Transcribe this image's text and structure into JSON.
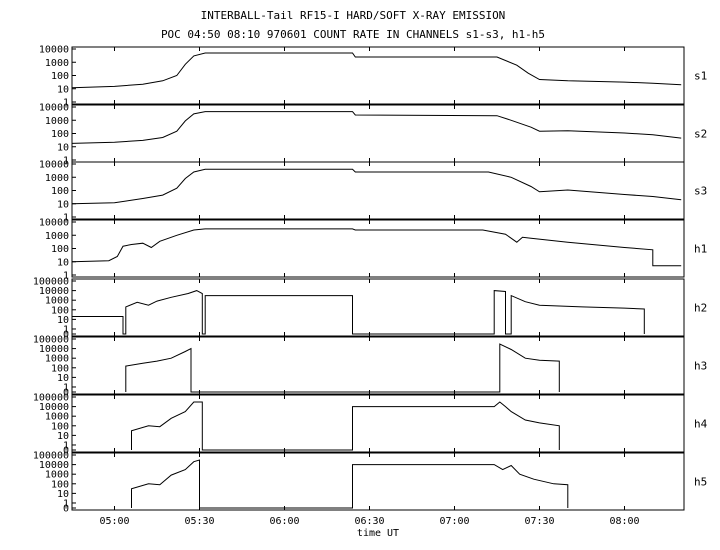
{
  "figure": {
    "title_line1": "INTERBALL-Tail RF15-I HARD/SOFT X-RAY EMISSION",
    "title_line2": "POC 04:50 08:10 970601  COUNT RATE IN CHANNELS s1-s3, h1-h5"
  },
  "chart_data": {
    "type": "line",
    "xlabel": "time UT",
    "x_ticks": [
      "05:00",
      "05:30",
      "06:00",
      "06:30",
      "07:00",
      "07:30",
      "08:00"
    ],
    "xlim": [
      "04:45",
      "08:21"
    ],
    "y_scale": "log",
    "series": [
      {
        "name": "s1",
        "y_ticks": [
          "10000",
          "1000",
          "100",
          "10",
          "1"
        ],
        "ylim": [
          1,
          10000
        ],
        "points": [
          [
            "04:45",
            12
          ],
          [
            "05:00",
            15
          ],
          [
            "05:10",
            22
          ],
          [
            "05:17",
            40
          ],
          [
            "05:22",
            100
          ],
          [
            "05:25",
            700
          ],
          [
            "05:28",
            3000
          ],
          [
            "05:32",
            5000
          ],
          [
            "06:24",
            5000
          ],
          [
            "06:25",
            2500
          ],
          [
            "07:15",
            2500
          ],
          [
            "07:22",
            600
          ],
          [
            "07:26",
            150
          ],
          [
            "07:30",
            50
          ],
          [
            "07:40",
            40
          ],
          [
            "08:00",
            32
          ],
          [
            "08:10",
            26
          ],
          [
            "08:20",
            20
          ]
        ]
      },
      {
        "name": "s2",
        "y_ticks": [
          "10000",
          "1000",
          "100",
          "10",
          "1"
        ],
        "ylim": [
          1,
          10000
        ],
        "points": [
          [
            "04:45",
            18
          ],
          [
            "05:00",
            22
          ],
          [
            "05:10",
            30
          ],
          [
            "05:17",
            50
          ],
          [
            "05:22",
            150
          ],
          [
            "05:25",
            900
          ],
          [
            "05:28",
            3000
          ],
          [
            "05:32",
            4500
          ],
          [
            "06:24",
            4500
          ],
          [
            "06:25",
            2500
          ],
          [
            "07:15",
            2200
          ],
          [
            "07:20",
            1000
          ],
          [
            "07:27",
            300
          ],
          [
            "07:30",
            150
          ],
          [
            "07:40",
            160
          ],
          [
            "08:00",
            110
          ],
          [
            "08:10",
            80
          ],
          [
            "08:20",
            45
          ]
        ]
      },
      {
        "name": "s3",
        "y_ticks": [
          "10000",
          "1000",
          "100",
          "10",
          "1"
        ],
        "ylim": [
          1,
          10000
        ],
        "points": [
          [
            "04:45",
            10
          ],
          [
            "05:00",
            12
          ],
          [
            "05:10",
            25
          ],
          [
            "05:17",
            45
          ],
          [
            "05:22",
            150
          ],
          [
            "05:25",
            800
          ],
          [
            "05:28",
            2500
          ],
          [
            "05:32",
            4000
          ],
          [
            "06:24",
            4000
          ],
          [
            "06:25",
            2500
          ],
          [
            "07:12",
            2500
          ],
          [
            "07:20",
            1000
          ],
          [
            "07:27",
            200
          ],
          [
            "07:30",
            80
          ],
          [
            "07:40",
            110
          ],
          [
            "08:00",
            50
          ],
          [
            "08:10",
            35
          ],
          [
            "08:20",
            20
          ]
        ]
      },
      {
        "name": "h1",
        "y_ticks": [
          "10000",
          "1000",
          "100",
          "10",
          "1"
        ],
        "ylim": [
          1,
          10000
        ],
        "points": [
          [
            "04:45",
            10
          ],
          [
            "04:58",
            12
          ],
          [
            "05:01",
            25
          ],
          [
            "05:03",
            150
          ],
          [
            "05:06",
            200
          ],
          [
            "05:10",
            250
          ],
          [
            "05:13",
            120
          ],
          [
            "05:16",
            350
          ],
          [
            "05:22",
            1000
          ],
          [
            "05:28",
            2500
          ],
          [
            "05:32",
            3000
          ],
          [
            "06:24",
            3000
          ],
          [
            "06:25",
            2500
          ],
          [
            "07:10",
            2500
          ],
          [
            "07:18",
            1200
          ],
          [
            "07:22",
            300
          ],
          [
            "07:24",
            700
          ],
          [
            "07:27",
            600
          ],
          [
            "07:40",
            300
          ],
          [
            "08:00",
            120
          ],
          [
            "08:10",
            80
          ],
          [
            "08:10",
            5
          ],
          [
            "08:20",
            5
          ]
        ]
      },
      {
        "name": "h2",
        "y_ticks": [
          "100000",
          "10000",
          "1000",
          "100",
          "10",
          "1",
          "0"
        ],
        "ylim": [
          0.3,
          100000
        ],
        "points": [
          [
            "04:45",
            20
          ],
          [
            "05:03",
            20
          ],
          [
            "05:03",
            0.3
          ],
          [
            "05:04",
            0.3
          ],
          [
            "05:04",
            200
          ],
          [
            "05:08",
            600
          ],
          [
            "05:12",
            300
          ],
          [
            "05:15",
            800
          ],
          [
            "05:20",
            2000
          ],
          [
            "05:26",
            5000
          ],
          [
            "05:29",
            10000
          ],
          [
            "05:31",
            5000
          ],
          [
            "05:31",
            0.3
          ],
          [
            "05:32",
            0.3
          ],
          [
            "05:32",
            3000
          ],
          [
            "06:24",
            3000
          ],
          [
            "06:24",
            0.3
          ],
          [
            "07:14",
            0.3
          ],
          [
            "07:14",
            10000
          ],
          [
            "07:18",
            8000
          ],
          [
            "07:18",
            0.3
          ],
          [
            "07:20",
            0.3
          ],
          [
            "07:20",
            3000
          ],
          [
            "07:25",
            700
          ],
          [
            "07:30",
            300
          ],
          [
            "07:45",
            200
          ],
          [
            "08:00",
            150
          ],
          [
            "08:07",
            120
          ],
          [
            "08:07",
            0.3
          ]
        ]
      },
      {
        "name": "h3",
        "y_ticks": [
          "100000",
          "10000",
          "1000",
          "100",
          "10",
          "1",
          "0"
        ],
        "ylim": [
          0.3,
          100000
        ],
        "points": [
          [
            "05:04",
            0.3
          ],
          [
            "05:04",
            150
          ],
          [
            "05:10",
            300
          ],
          [
            "05:15",
            500
          ],
          [
            "05:20",
            1000
          ],
          [
            "05:25",
            5000
          ],
          [
            "05:27",
            10000
          ],
          [
            "05:27",
            0.3
          ],
          [
            "07:16",
            0.3
          ],
          [
            "07:16",
            30000
          ],
          [
            "07:20",
            8000
          ],
          [
            "07:25",
            1000
          ],
          [
            "07:30",
            600
          ],
          [
            "07:37",
            500
          ],
          [
            "07:37",
            0.3
          ]
        ]
      },
      {
        "name": "h4",
        "y_ticks": [
          "100000",
          "10000",
          "1000",
          "100",
          "10",
          "1",
          "0"
        ],
        "ylim": [
          0.3,
          100000
        ],
        "points": [
          [
            "05:06",
            0.3
          ],
          [
            "05:06",
            30
          ],
          [
            "05:12",
            100
          ],
          [
            "05:16",
            80
          ],
          [
            "05:20",
            600
          ],
          [
            "05:25",
            3000
          ],
          [
            "05:28",
            30000
          ],
          [
            "05:31",
            30000
          ],
          [
            "05:31",
            0.3
          ],
          [
            "06:24",
            0.3
          ],
          [
            "06:24",
            10000
          ],
          [
            "07:14",
            10000
          ],
          [
            "07:16",
            30000
          ],
          [
            "07:18",
            10000
          ],
          [
            "07:20",
            3000
          ],
          [
            "07:25",
            400
          ],
          [
            "07:30",
            200
          ],
          [
            "07:37",
            100
          ],
          [
            "07:37",
            0.3
          ]
        ]
      },
      {
        "name": "h5",
        "y_ticks": [
          "100000",
          "10000",
          "1000",
          "100",
          "10",
          "1",
          "0"
        ],
        "ylim": [
          0.3,
          100000
        ],
        "points": [
          [
            "05:06",
            0.3
          ],
          [
            "05:06",
            30
          ],
          [
            "05:12",
            100
          ],
          [
            "05:16",
            80
          ],
          [
            "05:20",
            800
          ],
          [
            "05:25",
            3000
          ],
          [
            "05:28",
            20000
          ],
          [
            "05:30",
            30000
          ],
          [
            "05:30",
            0.3
          ],
          [
            "06:24",
            0.3
          ],
          [
            "06:24",
            10000
          ],
          [
            "07:14",
            10000
          ],
          [
            "07:17",
            3000
          ],
          [
            "07:20",
            8000
          ],
          [
            "07:23",
            1000
          ],
          [
            "07:28",
            300
          ],
          [
            "07:35",
            100
          ],
          [
            "07:40",
            80
          ],
          [
            "07:40",
            0.3
          ]
        ]
      }
    ]
  }
}
